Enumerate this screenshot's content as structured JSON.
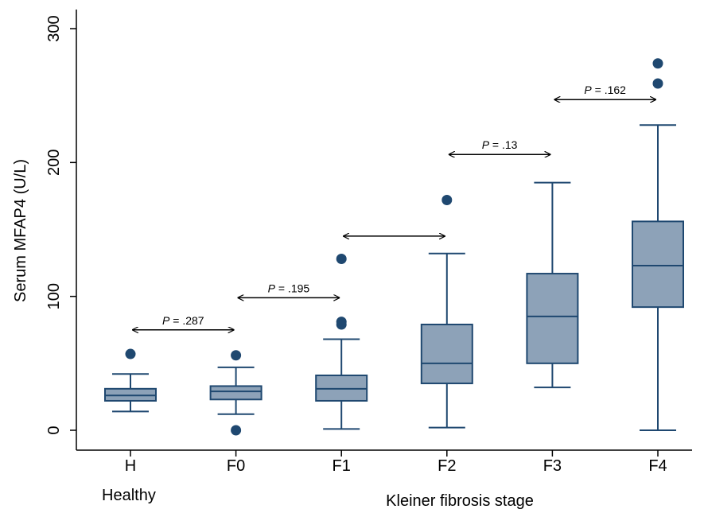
{
  "chart_data": {
    "type": "box",
    "categories": [
      "H",
      "F0",
      "F1",
      "F2",
      "F3",
      "F4"
    ],
    "group_label": "Healthy",
    "xlabel": "Kleiner fibrosis stage",
    "ylabel": "Serum MFAP4 (U/L)",
    "ylim": [
      -15,
      315
    ],
    "yticks": [
      "0",
      "100",
      "200",
      "300"
    ],
    "box_color": "#8DA2B8",
    "line_color": "#1F4870",
    "boxes": [
      {
        "category": "H",
        "whisker_low": 14,
        "q1": 22,
        "median": 26,
        "q3": 31,
        "whisker_high": 42,
        "outliers": [
          57
        ]
      },
      {
        "category": "F0",
        "whisker_low": 12,
        "q1": 23,
        "median": 29,
        "q3": 33,
        "whisker_high": 47,
        "outliers": [
          56,
          0
        ]
      },
      {
        "category": "F1",
        "whisker_low": 1,
        "q1": 22,
        "median": 31,
        "q3": 41,
        "whisker_high": 68,
        "outliers": [
          128,
          81,
          79
        ]
      },
      {
        "category": "F2",
        "whisker_low": 2,
        "q1": 35,
        "median": 50,
        "q3": 79,
        "whisker_high": 132,
        "outliers": [
          172
        ]
      },
      {
        "category": "F3",
        "whisker_low": 32,
        "q1": 50,
        "median": 85,
        "q3": 117,
        "whisker_high": 185,
        "outliers": []
      },
      {
        "category": "F4",
        "whisker_low": 0,
        "q1": 92,
        "median": 123,
        "q3": 156,
        "whisker_high": 228,
        "outliers": [
          274,
          259
        ]
      }
    ],
    "comparisons": [
      {
        "from": "H",
        "to": "F0",
        "y": 75,
        "p_prefix": "P",
        "p_value": " = .287"
      },
      {
        "from": "F0",
        "to": "F1",
        "y": 99,
        "p_prefix": "P",
        "p_value": " = .195"
      },
      {
        "from": "F1",
        "to": "F2",
        "y": 145,
        "p_prefix": "",
        "p_value": ""
      },
      {
        "from": "F2",
        "to": "F3",
        "y": 206,
        "p_prefix": "P",
        "p_value": " = .13"
      },
      {
        "from": "F3",
        "to": "F4",
        "y": 247,
        "p_prefix": "P",
        "p_value": " = .162"
      }
    ]
  }
}
